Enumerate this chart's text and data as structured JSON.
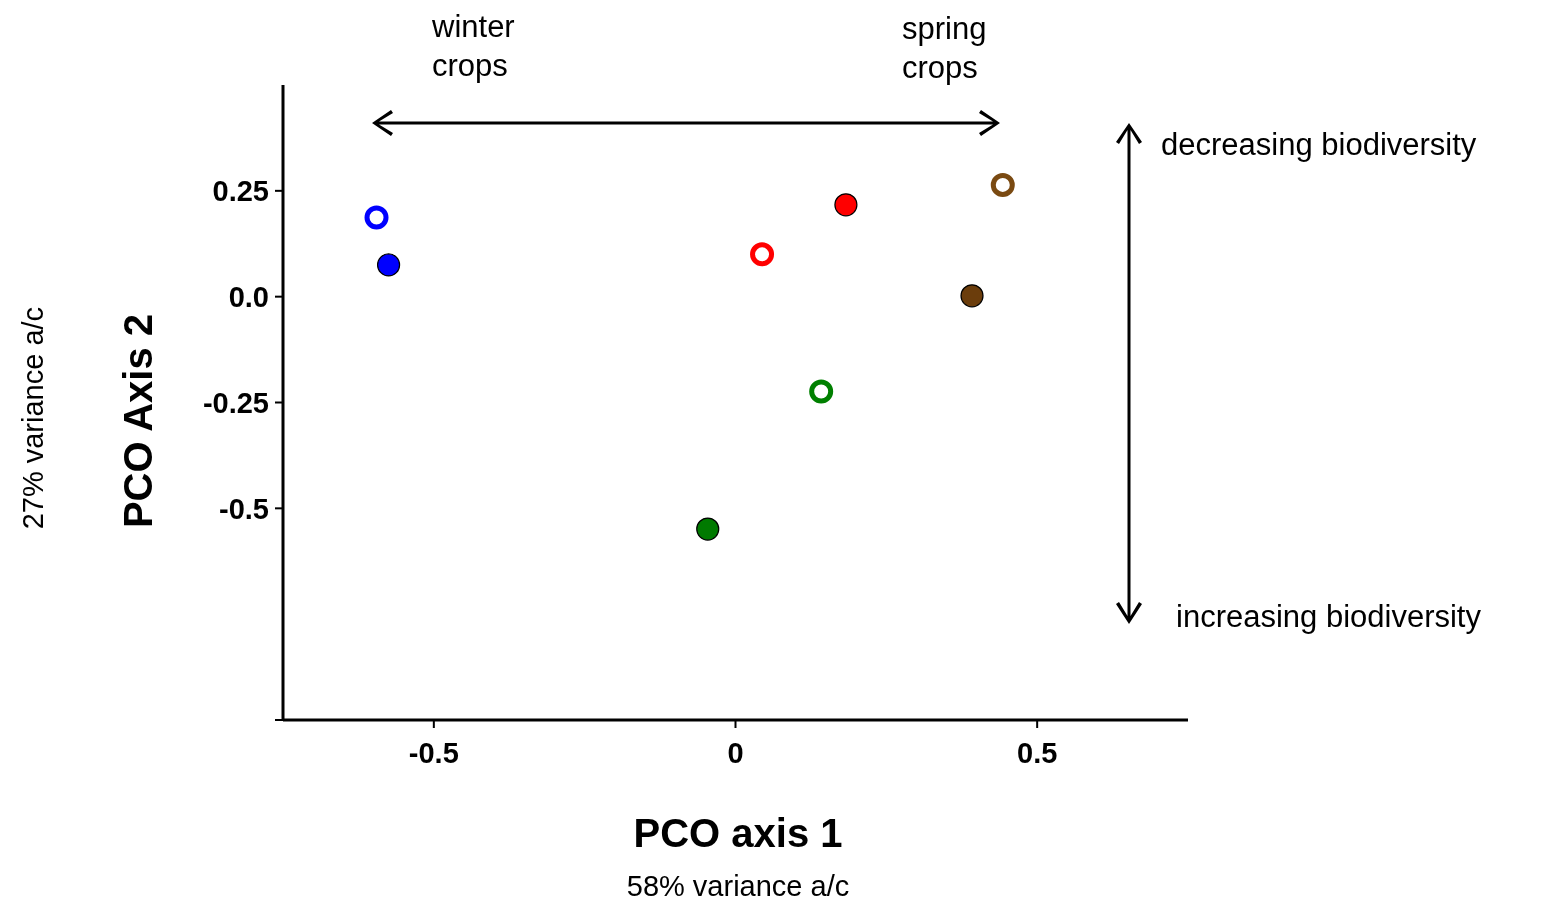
{
  "chart_data": {
    "type": "scatter",
    "xlabel": "PCO axis 1",
    "ylabel": "PCO Axis 2",
    "marker": "circle",
    "grid": false,
    "xlim": [
      -0.75,
      0.75
    ],
    "xticks": [
      -0.5,
      {
        "value": 0,
        "label": "0"
      },
      0.5
    ],
    "ylim": [
      -1,
      0.5
    ],
    "yticks": [
      {
        "value": -1,
        "label": null
      },
      -0.5,
      -0.25,
      {
        "value": 0,
        "label": "0.0"
      },
      0.25
    ],
    "series": [
      {
        "color": "#ffffff",
        "x": [
          -0.595,
          0.044,
          0.443,
          0.142
        ],
        "values": [
          0.187,
          0.1,
          0.264,
          -0.224
        ],
        "colors": [
          "#0000ff",
          "#ff0000",
          "#7a4a12",
          "#008000"
        ]
      },
      {
        "x": [
          -0.575,
          0.183,
          0.392,
          -0.046
        ],
        "values": [
          0.075,
          0.217,
          0.002,
          -0.549
        ],
        "colors": [
          "#0000ff",
          "#ff0000",
          "#6b3d0c",
          "#007a00"
        ]
      }
    ],
    "annotations": [
      "winter\ncrops",
      "spring\ncrops",
      "decreasing biodiversity",
      "increasing biodiversity",
      "27% variance a/c",
      "58% variance a/c"
    ]
  }
}
